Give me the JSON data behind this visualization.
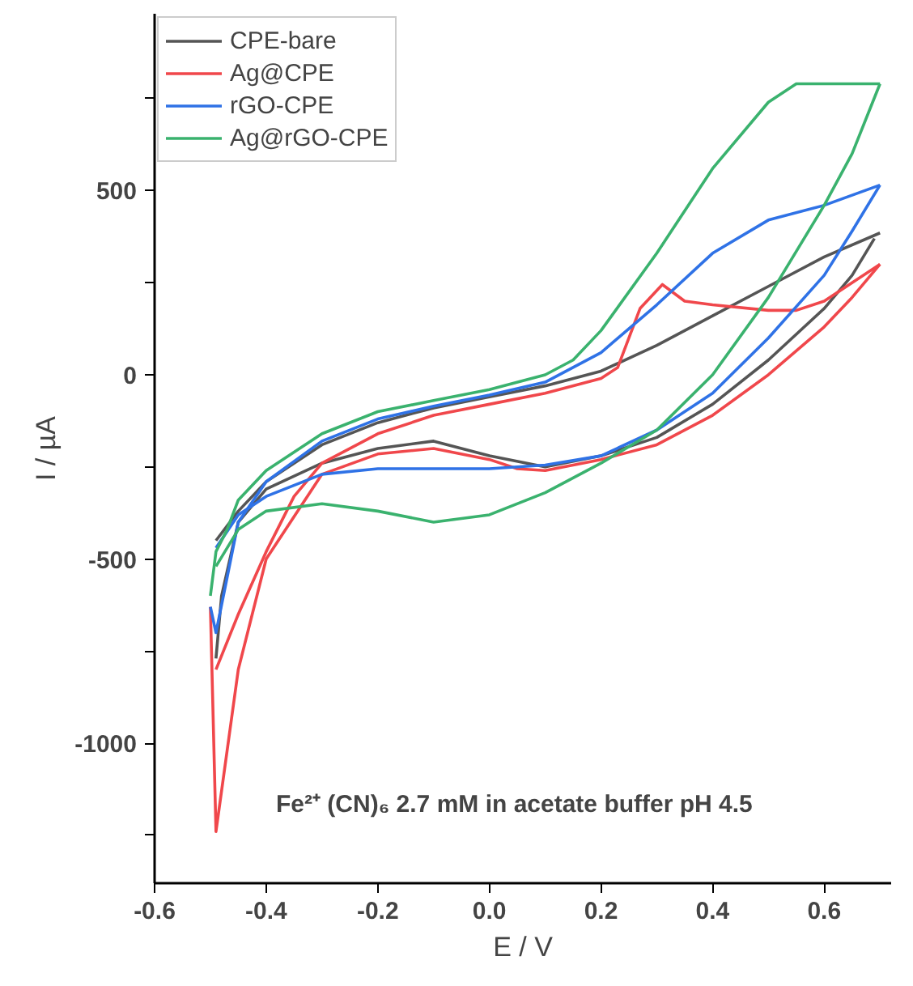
{
  "chart_data": {
    "type": "line",
    "xlabel": "E / V",
    "ylabel": "I / µA",
    "xlim": [
      -0.6,
      0.72
    ],
    "ylim": [
      -1380,
      980
    ],
    "xticks": [
      -0.6,
      -0.4,
      -0.2,
      {
        "value": 0,
        "label": "0.0"
      },
      0.2,
      0.4,
      0.6
    ],
    "yticks": [
      {
        "value": -1250,
        "label": null
      },
      -1000,
      {
        "value": -750,
        "label": null
      },
      -500,
      {
        "value": -250,
        "label": null
      },
      0,
      {
        "value": 250,
        "label": null
      },
      500,
      {
        "value": 750,
        "label": null
      }
    ],
    "grid": false,
    "legend": "top left",
    "marker": "none",
    "line_style": "solid",
    "annotations": [
      "Fe²⁺ (CN)₆  2.7 mM in acetate buffer  pH 4.5"
    ],
    "series": [
      {
        "name": "CPE-bare",
        "color": "#555555",
        "x": [
          -0.49,
          -0.45,
          -0.4,
          -0.3,
          -0.2,
          -0.1,
          0,
          0.1,
          0.2,
          0.3,
          0.4,
          0.5,
          0.6,
          0.7
        ],
        "values": [
          -450,
          -370,
          -290,
          -190,
          -130,
          -90,
          -60,
          -30,
          10,
          80,
          160,
          240,
          320,
          385
        ]
      },
      {
        "color": "#555555",
        "x": [
          -0.49,
          -0.48,
          -0.45,
          -0.4,
          -0.3,
          -0.2,
          -0.1,
          0,
          0.1,
          0.2,
          0.3,
          0.4,
          0.5,
          0.6,
          0.65,
          0.69
        ],
        "values": [
          -770,
          -600,
          -400,
          -310,
          -240,
          -200,
          -180,
          -220,
          -250,
          -220,
          -170,
          -80,
          40,
          180,
          270,
          370
        ]
      },
      {
        "name": "Ag@CPE",
        "color": "#f0474b",
        "x": [
          -0.49,
          -0.45,
          -0.4,
          -0.35,
          -0.3,
          -0.2,
          -0.1,
          0,
          0.1,
          0.2,
          0.23,
          0.27,
          0.31,
          0.35,
          0.4,
          0.5,
          0.55,
          0.6,
          0.7
        ],
        "values": [
          -800,
          -650,
          -480,
          -330,
          -240,
          -160,
          -110,
          -80,
          -50,
          -10,
          20,
          180,
          245,
          200,
          190,
          175,
          175,
          200,
          300
        ]
      },
      {
        "color": "#f0474b",
        "x": [
          -0.5,
          -0.49,
          -0.45,
          -0.4,
          -0.3,
          -0.2,
          -0.1,
          0,
          0.05,
          0.1,
          0.2,
          0.3,
          0.4,
          0.5,
          0.6,
          0.65,
          0.7
        ],
        "values": [
          -630,
          -1240,
          -800,
          -500,
          -270,
          -215,
          -200,
          -230,
          -255,
          -260,
          -230,
          -190,
          -110,
          0,
          130,
          210,
          300
        ]
      },
      {
        "name": "rGO-CPE",
        "color": "#2f72e6",
        "x": [
          -0.5,
          -0.49,
          -0.47,
          -0.45,
          -0.4,
          -0.3,
          -0.2,
          -0.1,
          0,
          0.1,
          0.2,
          0.3,
          0.4,
          0.5,
          0.6,
          0.7
        ],
        "values": [
          -630,
          -700,
          -550,
          -400,
          -290,
          -180,
          -120,
          -85,
          -55,
          -20,
          60,
          190,
          330,
          420,
          460,
          515
        ]
      },
      {
        "color": "#2f72e6",
        "x": [
          -0.49,
          -0.45,
          -0.4,
          -0.3,
          -0.2,
          -0.1,
          0,
          0.1,
          0.2,
          0.3,
          0.4,
          0.5,
          0.6,
          0.65,
          0.7
        ],
        "values": [
          -470,
          -380,
          -330,
          -270,
          -255,
          -255,
          -255,
          -245,
          -220,
          -150,
          -50,
          100,
          270,
          390,
          515
        ]
      },
      {
        "name": "Ag@rGO-CPE",
        "color": "#3ab26e",
        "x": [
          -0.5,
          -0.49,
          -0.47,
          -0.45,
          -0.4,
          -0.3,
          -0.2,
          -0.1,
          0,
          0.1,
          0.15,
          0.2,
          0.3,
          0.4,
          0.5,
          0.55,
          0.6,
          0.7
        ],
        "values": [
          -600,
          -480,
          -420,
          -340,
          -260,
          -160,
          -100,
          -70,
          -40,
          0,
          40,
          120,
          330,
          560,
          740,
          790,
          790,
          790
        ]
      },
      {
        "color": "#3ab26e",
        "x": [
          -0.49,
          -0.45,
          -0.4,
          -0.3,
          -0.2,
          -0.1,
          0,
          0.1,
          0.2,
          0.3,
          0.4,
          0.5,
          0.6,
          0.65,
          0.7
        ],
        "values": [
          -520,
          -420,
          -370,
          -350,
          -370,
          -400,
          -380,
          -320,
          -240,
          -150,
          0,
          210,
          460,
          600,
          790
        ]
      }
    ]
  }
}
